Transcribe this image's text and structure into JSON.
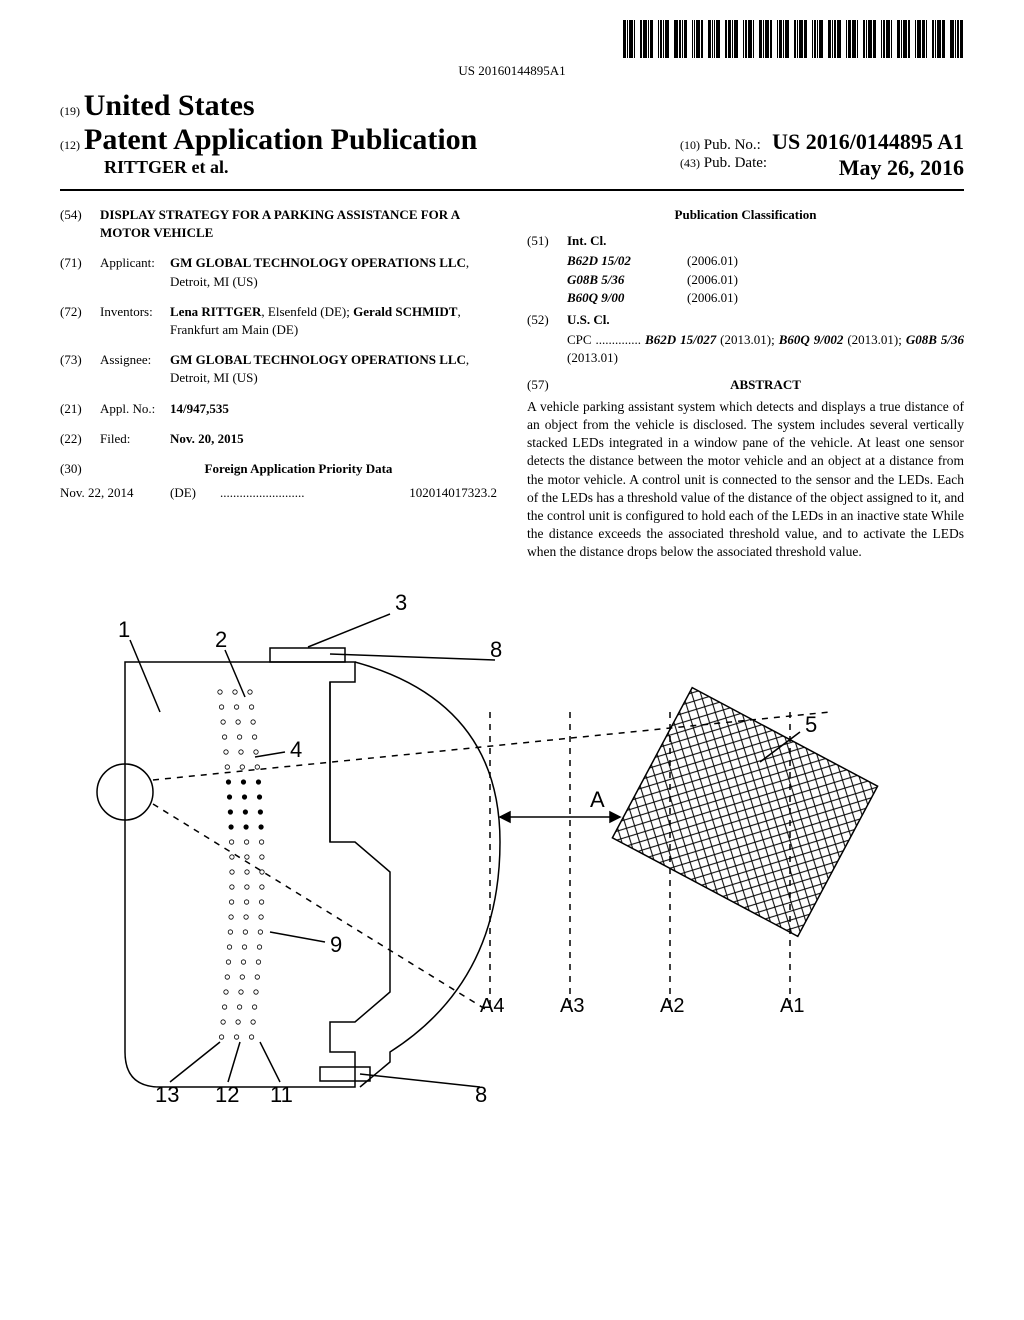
{
  "barcode": {
    "text": "US 20160144895A1"
  },
  "header": {
    "num19": "(19)",
    "country": "United States",
    "num12": "(12)",
    "doc_type": "Patent Application Publication",
    "authors": "RITTGER et al.",
    "num10": "(10)",
    "pub_no_label": "Pub. No.:",
    "pub_no": "US 2016/0144895 A1",
    "num43": "(43)",
    "pub_date_label": "Pub. Date:",
    "pub_date": "May 26, 2016"
  },
  "biblio": {
    "title_num": "(54)",
    "title": "DISPLAY STRATEGY FOR A PARKING ASSISTANCE FOR A MOTOR VEHICLE",
    "applicant_num": "(71)",
    "applicant_label": "Applicant:",
    "applicant": "GM GLOBAL TECHNOLOGY OPERATIONS LLC",
    "applicant_loc": ", Detroit, MI (US)",
    "inventors_num": "(72)",
    "inventors_label": "Inventors:",
    "inventor1": "Lena RITTGER",
    "inventor1_loc": ", Elsenfeld (DE);",
    "inventor2": "Gerald SCHMIDT",
    "inventor2_loc": ", Frankfurt am Main (DE)",
    "assignee_num": "(73)",
    "assignee_label": "Assignee:",
    "assignee": "GM GLOBAL TECHNOLOGY OPERATIONS LLC",
    "assignee_loc": ", Detroit, MI (US)",
    "appl_num": "(21)",
    "appl_label": "Appl. No.:",
    "appl_no": "14/947,535",
    "filed_num": "(22)",
    "filed_label": "Filed:",
    "filed_date": "Nov. 20, 2015",
    "priority_num": "(30)",
    "priority_heading": "Foreign Application Priority Data",
    "priority_date": "Nov. 22, 2014",
    "priority_country": "(DE)",
    "priority_app": "102014017323.2"
  },
  "classification": {
    "heading": "Publication Classification",
    "intcl_num": "(51)",
    "intcl_label": "Int. Cl.",
    "classes": [
      {
        "code": "B62D 15/02",
        "date": "(2006.01)"
      },
      {
        "code": "G08B 5/36",
        "date": "(2006.01)"
      },
      {
        "code": "B60Q 9/00",
        "date": "(2006.01)"
      }
    ],
    "uscl_num": "(52)",
    "uscl_label": "U.S. Cl.",
    "cpc_label": "CPC",
    "cpc_text": "B62D 15/027 (2013.01); B60Q 9/002 (2013.01); G08B 5/36 (2013.01)"
  },
  "abstract": {
    "num": "(57)",
    "heading": "ABSTRACT",
    "text": "A vehicle parking assistant system which detects and displays a true distance of an object from the vehicle is disclosed. The system includes several vertically stacked LEDs integrated in a window pane of the vehicle. At least one sensor detects the distance between the motor vehicle and an object at a distance from the motor vehicle. A control unit is connected to the sensor and the LEDs. Each of the LEDs has a threshold value of the distance of the object assigned to it, and the control unit is configured to hold each of the LEDs in an inactive state While the distance exceeds the associated threshold value, and to activate the LEDs when the distance drops below the associated threshold value."
  },
  "figure": {
    "labels": {
      "n1": "1",
      "n2": "2",
      "n3": "3",
      "n4": "4",
      "n5": "5",
      "n8a": "8",
      "n8b": "8",
      "n9": "9",
      "n11": "11",
      "n12": "12",
      "n13": "13",
      "A": "A",
      "A1": "A1",
      "A2": "A2",
      "A3": "A3",
      "A4": "A4"
    },
    "colors": {
      "stroke": "#000000",
      "fill_none": "none",
      "background": "#ffffff"
    },
    "stroke_width": 1.5,
    "dash": "6,4",
    "label_fontsize": 22,
    "small_label_fontsize": 20
  }
}
